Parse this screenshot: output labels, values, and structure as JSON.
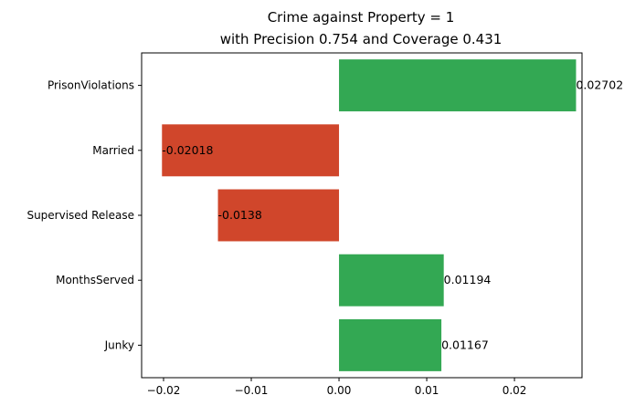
{
  "chart_data": {
    "type": "bar",
    "orientation": "horizontal",
    "title": [
      "Crime against Property = 1",
      "with Precision 0.754 and Coverage 0.431"
    ],
    "xlabel": "",
    "ylabel": "",
    "categories": [
      "PrisonViolations",
      "Married",
      "Supervised Release",
      "MonthsServed",
      "Junky"
    ],
    "values": [
      0.02702,
      -0.02018,
      -0.0138,
      0.01194,
      0.01167
    ],
    "value_labels": [
      "0.02702",
      "-0.02018",
      "-0.0138",
      "0.01194",
      "0.01167"
    ],
    "xlim": [
      -0.0225,
      0.0277
    ],
    "xticks": [
      -0.02,
      -0.01,
      0.0,
      0.01,
      0.02
    ],
    "xtick_labels": [
      "−0.02",
      "−0.01",
      "0.00",
      "0.01",
      "0.02"
    ],
    "grid": false,
    "colors": {
      "positive": "#33a853",
      "negative": "#d0462b"
    }
  }
}
